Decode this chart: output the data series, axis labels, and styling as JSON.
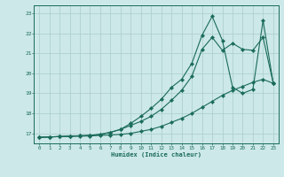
{
  "title": "",
  "xlabel": "Humidex (Indice chaleur)",
  "ylabel": "",
  "bg_color": "#cce8e8",
  "grid_color": "#aacccc",
  "line_color": "#1a6b5a",
  "xlim": [
    -0.5,
    23.5
  ],
  "ylim": [
    16.5,
    23.4
  ],
  "xticks": [
    0,
    1,
    2,
    3,
    4,
    5,
    6,
    7,
    8,
    9,
    10,
    11,
    12,
    13,
    14,
    15,
    16,
    17,
    18,
    19,
    20,
    21,
    22,
    23
  ],
  "yticks": [
    17,
    18,
    19,
    20,
    21,
    22,
    23
  ],
  "series1_x": [
    0,
    1,
    2,
    3,
    4,
    5,
    6,
    7,
    8,
    9,
    10,
    11,
    12,
    13,
    14,
    15,
    16,
    17,
    18,
    19,
    20,
    21,
    22,
    23
  ],
  "series1_y": [
    16.8,
    16.82,
    16.84,
    16.85,
    16.86,
    16.87,
    16.9,
    16.92,
    16.95,
    17.0,
    17.1,
    17.2,
    17.35,
    17.55,
    17.75,
    18.0,
    18.3,
    18.6,
    18.9,
    19.15,
    19.35,
    19.55,
    19.7,
    19.5
  ],
  "series2_x": [
    0,
    1,
    2,
    3,
    4,
    5,
    6,
    7,
    8,
    9,
    10,
    11,
    12,
    13,
    14,
    15,
    16,
    17,
    18,
    19,
    20,
    21,
    22,
    23
  ],
  "series2_y": [
    16.8,
    16.82,
    16.84,
    16.86,
    16.88,
    16.9,
    16.95,
    17.05,
    17.2,
    17.4,
    17.6,
    17.85,
    18.2,
    18.65,
    19.15,
    19.85,
    21.2,
    21.8,
    21.15,
    21.5,
    21.2,
    21.15,
    21.8,
    19.5
  ],
  "series3_x": [
    0,
    1,
    2,
    3,
    4,
    5,
    6,
    7,
    8,
    9,
    10,
    11,
    12,
    13,
    14,
    15,
    16,
    17,
    18,
    19,
    20,
    21,
    22,
    23
  ],
  "series3_y": [
    16.8,
    16.82,
    16.84,
    16.86,
    16.88,
    16.9,
    16.95,
    17.05,
    17.2,
    17.5,
    17.85,
    18.25,
    18.7,
    19.3,
    19.7,
    20.5,
    21.9,
    22.85,
    21.65,
    19.3,
    19.0,
    19.2,
    22.65,
    19.5
  ]
}
